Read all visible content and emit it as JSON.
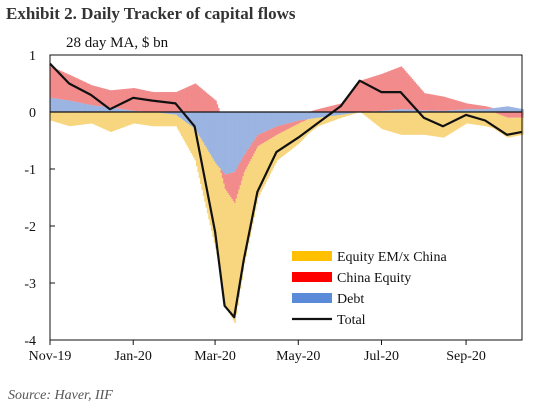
{
  "header": {
    "title": "Exhibit 2. Daily Tracker of capital flows",
    "subtitle": "28 day MA, $ bn"
  },
  "footer": {
    "source": "Source: Haver, IIF"
  },
  "colors": {
    "equity_em_ex_china": "#f7d67f",
    "china_equity": "#f28b8b",
    "debt": "#9bb4e2",
    "total": "#111111",
    "legend_equity_em_ex_china": "#ffc000",
    "legend_china_equity": "#ff0000",
    "legend_debt": "#5b8bd8"
  },
  "chart_data": {
    "type": "area",
    "title": "Exhibit 2. Daily Tracker of capital flows",
    "subtitle": "28 day MA, $ bn",
    "xlabel": "",
    "ylabel": "",
    "ylim": [
      -4,
      1
    ],
    "xlim": [
      "2019-11-01",
      "2020-10-12"
    ],
    "y_ticks": [
      1,
      0,
      -1,
      -2,
      -3,
      -4
    ],
    "y_tick_labels": [
      "1",
      "0",
      "-1",
      "-2",
      "-3",
      "-4"
    ],
    "x_ticks": [
      "2019-11-01",
      "2020-01-01",
      "2020-03-01",
      "2020-05-01",
      "2020-07-01",
      "2020-09-01"
    ],
    "x_tick_labels": [
      "Nov-19",
      "Jan-20",
      "Mar-20",
      "May-20",
      "Jul-20",
      "Sep-20"
    ],
    "grid": false,
    "legend_position": "bottom-right",
    "legend": [
      "Equity EM/x China",
      "China Equity",
      "Debt",
      "Total"
    ],
    "x": [
      "2019-11-01",
      "2019-11-15",
      "2019-12-01",
      "2019-12-15",
      "2020-01-01",
      "2020-01-15",
      "2020-02-01",
      "2020-02-15",
      "2020-03-01",
      "2020-03-08",
      "2020-03-15",
      "2020-03-22",
      "2020-04-01",
      "2020-04-15",
      "2020-05-01",
      "2020-05-15",
      "2020-06-01",
      "2020-06-15",
      "2020-07-01",
      "2020-07-15",
      "2020-08-01",
      "2020-08-15",
      "2020-09-01",
      "2020-09-15",
      "2020-10-01",
      "2020-10-12"
    ],
    "series": [
      {
        "name": "Debt",
        "chart": "bar",
        "values": [
          0.25,
          0.2,
          0.12,
          0.08,
          0.02,
          0.0,
          -0.05,
          -0.3,
          -0.9,
          -1.1,
          -1.05,
          -0.75,
          -0.4,
          -0.25,
          -0.15,
          -0.1,
          -0.05,
          0.0,
          0.02,
          0.05,
          0.03,
          0.02,
          0.05,
          0.05,
          0.1,
          0.05
        ]
      },
      {
        "name": "China Equity",
        "chart": "bar",
        "values": [
          0.55,
          0.45,
          0.35,
          0.3,
          0.4,
          0.35,
          0.35,
          0.5,
          0.2,
          -0.25,
          -0.55,
          -0.3,
          -0.2,
          -0.15,
          -0.05,
          0.05,
          0.15,
          0.55,
          0.65,
          0.75,
          0.3,
          0.25,
          0.1,
          0.05,
          -0.1,
          -0.1
        ]
      },
      {
        "name": "Equity EM/x China",
        "chart": "bar",
        "values": [
          -0.15,
          -0.25,
          -0.2,
          -0.35,
          -0.2,
          -0.25,
          -0.2,
          -0.55,
          -1.5,
          -2.05,
          -2.1,
          -1.6,
          -0.9,
          -0.45,
          -0.35,
          -0.15,
          -0.05,
          0.0,
          -0.3,
          -0.4,
          -0.4,
          -0.45,
          -0.2,
          -0.25,
          -0.35,
          -0.3
        ]
      },
      {
        "name": "Total",
        "chart": "line",
        "values": [
          0.85,
          0.5,
          0.3,
          0.05,
          0.25,
          0.2,
          0.15,
          -0.25,
          -2.1,
          -3.4,
          -3.6,
          -2.6,
          -1.4,
          -0.7,
          -0.45,
          -0.2,
          0.1,
          0.55,
          0.35,
          0.35,
          -0.1,
          -0.25,
          -0.05,
          -0.15,
          -0.4,
          -0.35
        ]
      }
    ]
  }
}
